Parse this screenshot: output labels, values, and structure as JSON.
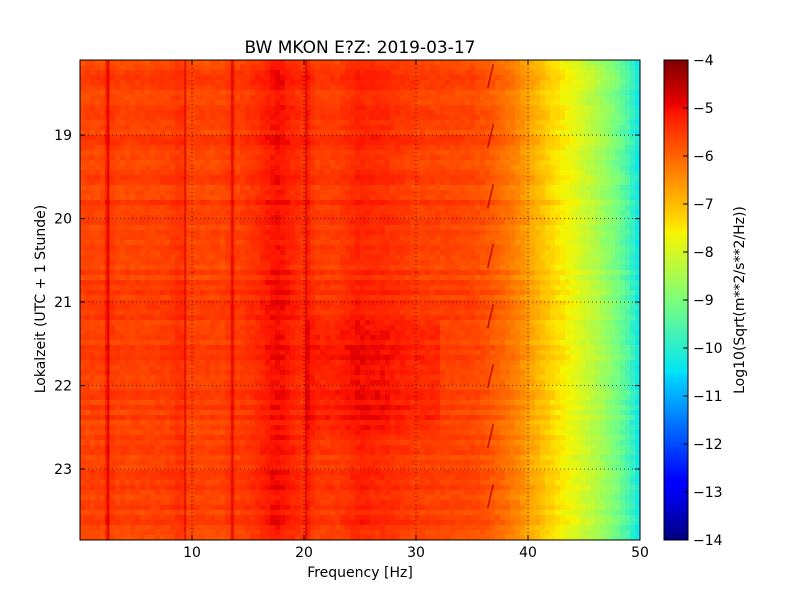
{
  "chart_data": {
    "type": "heatmap",
    "title": "BW MKON E?Z: 2019-03-17",
    "xlabel": "Frequency [Hz]",
    "ylabel": "Lokalzeit (UTC + 1 Stunde)",
    "xlim": [
      0,
      50
    ],
    "ylim": [
      18.1,
      23.85
    ],
    "x_ticks": [
      10,
      20,
      30,
      40,
      50
    ],
    "x_tick_labels": [
      "10",
      "20",
      "30",
      "40",
      "50"
    ],
    "y_ticks": [
      19,
      20,
      21,
      22,
      23
    ],
    "y_tick_labels": [
      "19",
      "20",
      "21",
      "22",
      "23"
    ],
    "y_direction": "top-to-bottom increasing",
    "grid": "dotted",
    "colormap": "jet",
    "colorbar": {
      "label": "Log10(Sqrt(m**2/s**2/Hz))",
      "range": [
        -14,
        -4
      ],
      "ticks": [
        -4,
        -5,
        -6,
        -7,
        -8,
        -9,
        -10,
        -11,
        -12,
        -13,
        -14
      ],
      "tick_labels": [
        "−4",
        "−5",
        "−6",
        "−7",
        "−8",
        "−9",
        "−10",
        "−11",
        "−12",
        "−13",
        "−14"
      ]
    },
    "spectrum_profile": {
      "frequency_hz": [
        0,
        2,
        2.5,
        3,
        5,
        8,
        9,
        9.6,
        10,
        13,
        13.6,
        14,
        15,
        16,
        17,
        17.5,
        18,
        19,
        20,
        20.2,
        21,
        23,
        24,
        25,
        26,
        27,
        28,
        30,
        33,
        35,
        36,
        37,
        38,
        39,
        40,
        41,
        42,
        43,
        44,
        45,
        46,
        47,
        48,
        49,
        50
      ],
      "log10_amplitude": [
        -5.6,
        -5.6,
        -5.15,
        -5.6,
        -5.6,
        -5.55,
        -5.35,
        -5.6,
        -5.6,
        -5.6,
        -5.3,
        -5.55,
        -5.45,
        -5.3,
        -5.1,
        -5.0,
        -5.05,
        -5.25,
        -5.4,
        -5.15,
        -5.5,
        -5.5,
        -5.35,
        -5.2,
        -5.3,
        -5.3,
        -5.4,
        -5.55,
        -5.6,
        -5.65,
        -5.75,
        -5.9,
        -6.1,
        -6.35,
        -6.65,
        -6.95,
        -7.25,
        -7.5,
        -7.75,
        -8.05,
        -8.35,
        -8.7,
        -9.1,
        -9.6,
        -10.4
      ]
    },
    "features": {
      "narrow_lines_hz": [
        2.5,
        9.4,
        13.6,
        20.2
      ],
      "drifting_line_hz": [
        36.4,
        36.9
      ],
      "energetic_band_hours": [
        21.2,
        22.6
      ],
      "energetic_band_hz": [
        20,
        32
      ]
    }
  }
}
